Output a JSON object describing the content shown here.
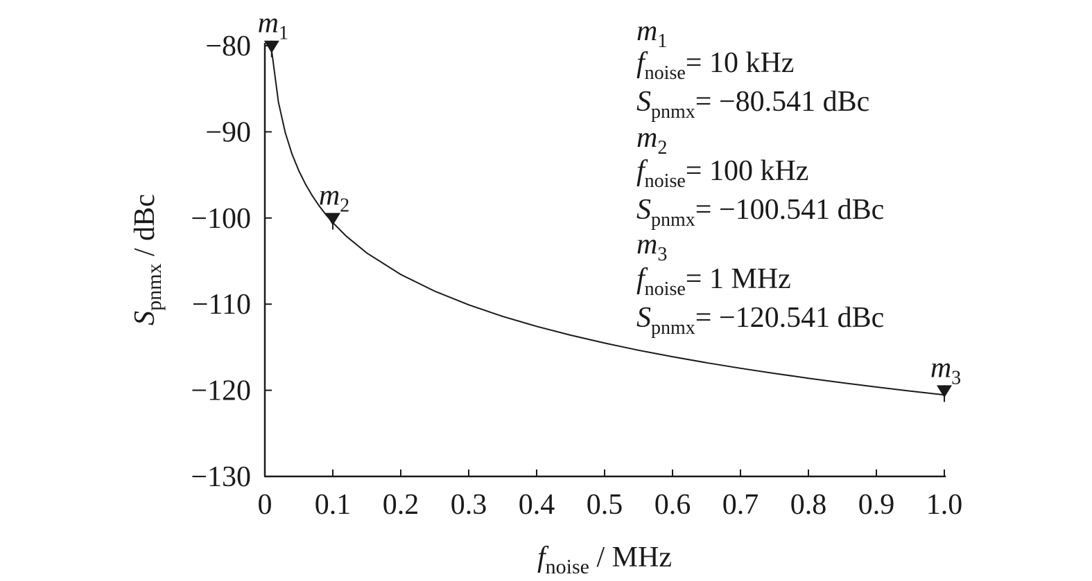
{
  "chart_data": {
    "type": "line",
    "xlabel": {
      "symbol": "f",
      "sub": "noise",
      "unit": " / MHz"
    },
    "ylabel": {
      "symbol": "S",
      "sub": "pnmx",
      "unit": " / dBc"
    },
    "xlim": [
      0,
      1.0
    ],
    "ylim": [
      -130,
      -80
    ],
    "x_ticks": [
      0,
      0.1,
      0.2,
      0.3,
      0.4,
      0.5,
      0.6,
      0.7,
      0.8,
      0.9,
      1.0
    ],
    "x_tick_labels": [
      "0",
      "0.1",
      "0.2",
      "0.3",
      "0.4",
      "0.5",
      "0.6",
      "0.7",
      "0.8",
      "0.9",
      "1.0"
    ],
    "y_ticks": [
      -80,
      -90,
      -100,
      -110,
      -120,
      -130
    ],
    "y_tick_labels": [
      "−80",
      "−90",
      "−100",
      "−110",
      "−120",
      "−130"
    ],
    "grid": false,
    "series": [
      {
        "x": [
          0.01,
          0.02,
          0.03,
          0.04,
          0.05,
          0.06,
          0.07,
          0.08,
          0.09,
          0.1,
          0.12,
          0.15,
          0.2,
          0.25,
          0.3,
          0.35,
          0.4,
          0.45,
          0.5,
          0.55,
          0.6,
          0.65,
          0.7,
          0.75,
          0.8,
          0.85,
          0.9,
          0.95,
          1.0
        ],
        "y": [
          -80.541,
          -86.56,
          -90.08,
          -92.58,
          -94.52,
          -96.1,
          -97.44,
          -98.6,
          -99.62,
          -100.541,
          -102.12,
          -104.06,
          -106.56,
          -108.5,
          -110.08,
          -111.42,
          -112.58,
          -113.6,
          -114.52,
          -115.35,
          -116.1,
          -116.8,
          -117.44,
          -118.04,
          -118.6,
          -119.13,
          -119.62,
          -120.09,
          -120.541
        ]
      }
    ],
    "markers": [
      {
        "name": "m",
        "sub": "1",
        "x": 0.01,
        "y": -80.541,
        "f_value": "= 10 kHz",
        "s_value": "= −80.541 dBc"
      },
      {
        "name": "m",
        "sub": "2",
        "x": 0.1,
        "y": -100.541,
        "f_value": "= 100 kHz",
        "s_value": "= −100.541 dBc"
      },
      {
        "name": "m",
        "sub": "3",
        "x": 1.0,
        "y": -120.541,
        "f_value": "= 1 MHz",
        "s_value": "= −120.541 dBc"
      }
    ],
    "annotation": {
      "f_symbol": "f",
      "f_sub": "noise",
      "s_symbol": "S",
      "s_sub": "pnmx"
    }
  }
}
